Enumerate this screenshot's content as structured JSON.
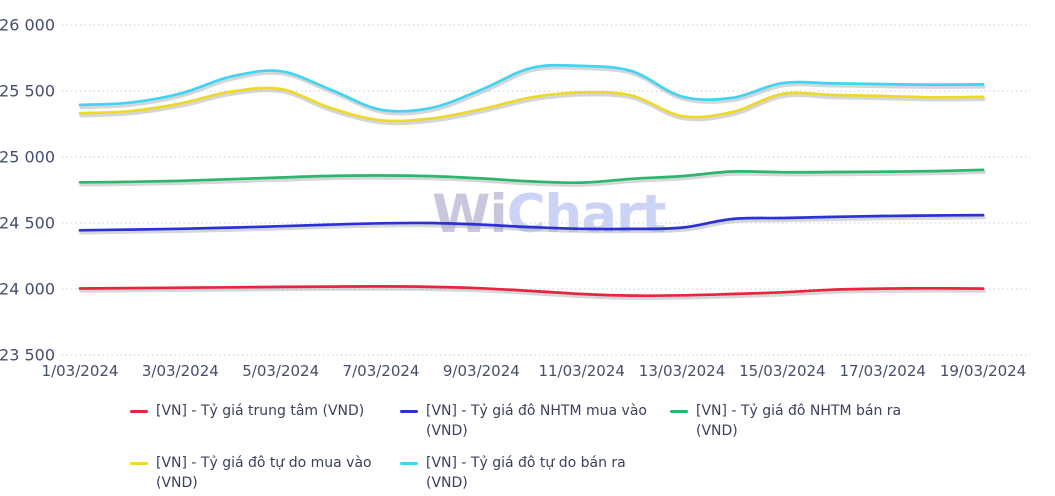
{
  "watermark": {
    "part1": "Wi",
    "part2": "Chart"
  },
  "colors": {
    "background": "#ffffff",
    "gridline": "#cfd2db",
    "axis_text": "#454e6b",
    "legend_text": "#3a415a",
    "line_shadow": "#aaadb6",
    "watermark_wi": "#c8c7dd",
    "watermark_chart": "#ccd4f6"
  },
  "chart_data": {
    "type": "line",
    "title": "",
    "xlabel": "",
    "ylabel": "",
    "grid": "dotted-horizontal",
    "legend_position": "bottom",
    "ylim": [
      23500,
      26150
    ],
    "y_ticks": [
      "26 000",
      "25 500",
      "25 000",
      "24 500",
      "24 000",
      "23 500"
    ],
    "y_tick_values": [
      26000,
      25500,
      25000,
      24500,
      24000,
      23500
    ],
    "x_labels": [
      "1/03/2024",
      "3/03/2024",
      "5/03/2024",
      "7/03/2024",
      "9/03/2024",
      "11/03/2024",
      "13/03/2024",
      "15/03/2024",
      "17/03/2024",
      "19/03/2024"
    ],
    "x_days": [
      1,
      2,
      3,
      4,
      5,
      6,
      7,
      8,
      9,
      10,
      11,
      12,
      13,
      14,
      15,
      16,
      17,
      18,
      19
    ],
    "series": [
      {
        "key": "ty-gia-trung-tam",
        "name": "[VN] - Tỷ giá trung tâm (VND)",
        "color": "#e8243f",
        "values": [
          24004,
          24007,
          24010,
          24013,
          24016,
          24018,
          24020,
          24016,
          24005,
          23985,
          23962,
          23950,
          23952,
          23962,
          23975,
          23995,
          24003,
          24005,
          24003
        ]
      },
      {
        "key": "ty-gia-do-nhtm-mua-vao",
        "name": "[VN] - Tỷ giá đô NHTM mua vào (VND)",
        "color": "#2d31d4",
        "values": [
          24445,
          24450,
          24456,
          24465,
          24476,
          24488,
          24498,
          24500,
          24488,
          24468,
          24456,
          24455,
          24465,
          24530,
          24538,
          24546,
          24553,
          24557,
          24560
        ]
      },
      {
        "key": "ty-gia-do-nhtm-ban-ra",
        "name": "[VN] - Tỷ giá đô NHTM bán ra (VND)",
        "color": "#2bb56d",
        "values": [
          24808,
          24812,
          24820,
          24832,
          24845,
          24857,
          24860,
          24855,
          24838,
          24815,
          24806,
          24835,
          24855,
          24890,
          24885,
          24886,
          24889,
          24893,
          24903
        ]
      },
      {
        "key": "ty-gia-do-tu-do-mua-vao",
        "name": "[VN] - Tỷ giá đô tự do mua vào (VND)",
        "color": "#ecd928",
        "values": [
          25332,
          25348,
          25405,
          25495,
          25515,
          25370,
          25278,
          25292,
          25362,
          25452,
          25490,
          25465,
          25310,
          25340,
          25478,
          25470,
          25462,
          25452,
          25456
        ]
      },
      {
        "key": "ty-gia-do-tu-do-ban-ra",
        "name": "[VN] - Tỷ giá đô tự do bán ra (VND)",
        "color": "#41d4f2",
        "values": [
          25395,
          25412,
          25480,
          25608,
          25650,
          25510,
          25358,
          25372,
          25510,
          25675,
          25690,
          25650,
          25458,
          25448,
          25560,
          25558,
          25552,
          25548,
          25550
        ]
      }
    ]
  }
}
